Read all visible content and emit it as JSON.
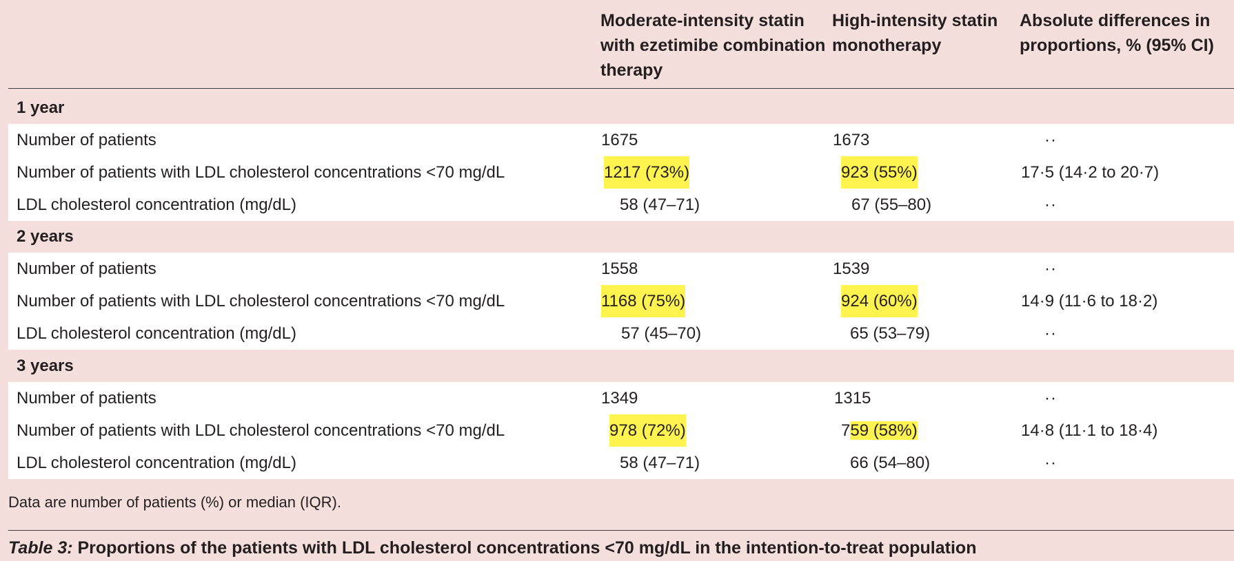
{
  "columns": {
    "c1": "Moderate-intensity statin with ezetimibe combination therapy",
    "c2": "High-intensity statin monotherapy",
    "c3": "Absolute differences in proportions, % (95% CI)"
  },
  "sections": [
    {
      "title": "1 year",
      "rows": [
        {
          "label": "Number of patients",
          "c1": "1675",
          "c2": "1673",
          "c3": "··"
        },
        {
          "label": "Number of patients with LDL cholesterol concentrations <70 mg/dL",
          "c1": "1217 (73%)",
          "c2": "923 (55%)",
          "c3": "17·5 (14·2 to 20·7)"
        },
        {
          "label": "LDL cholesterol concentration (mg/dL)",
          "c1": "58 (47–71)",
          "c2": "67 (55–80)",
          "c3": "··"
        }
      ]
    },
    {
      "title": "2 years",
      "rows": [
        {
          "label": "Number of patients",
          "c1": "1558",
          "c2": "1539",
          "c3": "··"
        },
        {
          "label": "Number of patients with LDL cholesterol concentrations <70 mg/dL",
          "c1": "1168 (75%)",
          "c2": "924 (60%)",
          "c3": "14·9 (11·6 to 18·2)"
        },
        {
          "label": "LDL cholesterol concentration (mg/dL)",
          "c1": "57 (45–70)",
          "c2": "65 (53–79)",
          "c3": "··"
        }
      ]
    },
    {
      "title": "3 years",
      "rows": [
        {
          "label": "Number of patients",
          "c1": "1349",
          "c2": "1315",
          "c3": "··"
        },
        {
          "label": "Number of patients with LDL cholesterol concentrations <70 mg/dL",
          "c1": "978 (72%)",
          "c2_prefix": "7",
          "c2": "59 (58%)",
          "c3": "14·8 (11·1 to 18·4)"
        },
        {
          "label": "LDL cholesterol concentration (mg/dL)",
          "c1": "58 (47–71)",
          "c2": "66 (54–80)",
          "c3": "··"
        }
      ]
    }
  ],
  "footnote": "Data are number of patients (%) or median (IQR).",
  "caption": {
    "label": "Table 3:",
    "text": " Proportions of the patients with LDL cholesterol concentrations <70 mg/dL in the intention-to-treat population"
  },
  "colors": {
    "background": "#f4dfdc",
    "band": "#ffffff",
    "highlight": "#fff34f"
  }
}
